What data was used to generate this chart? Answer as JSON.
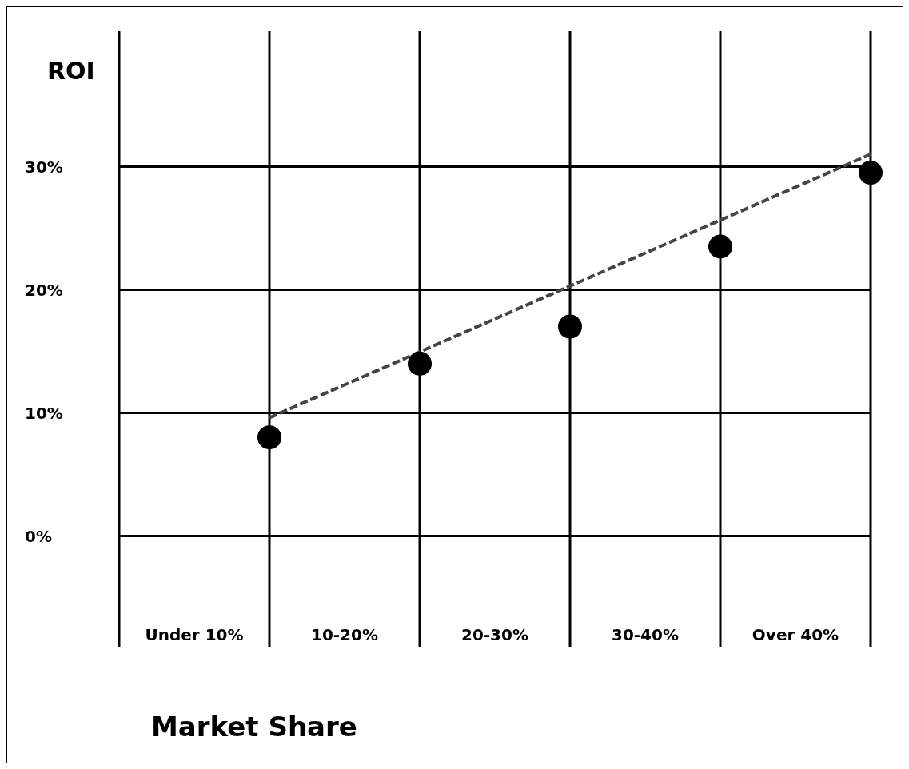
{
  "chart_data": {
    "type": "scatter",
    "xlabel": "Market Share",
    "ylabel": "ROI",
    "categories": [
      null,
      "Under 10%",
      null,
      "10-20%",
      null,
      "20-30%",
      null,
      "30-40%",
      null,
      "Over 40%",
      null
    ],
    "ylim": [
      -9,
      41
    ],
    "yticks": [
      {
        "value": 0,
        "label": "0%"
      },
      {
        "value": 10,
        "label": "10%"
      },
      {
        "value": 20,
        "label": "20%"
      },
      {
        "value": 30,
        "label": "30%"
      }
    ],
    "grid": true,
    "marker": "circle",
    "series": [
      {
        "color": "#000000",
        "values": [
          null,
          null,
          8,
          null,
          14,
          null,
          17,
          null,
          23.5,
          null,
          29.5
        ]
      },
      {
        "type": "line",
        "color": "#444444",
        "line_style": "dashed",
        "marker": "none",
        "values": [
          null,
          null,
          9.6,
          null,
          null,
          null,
          null,
          null,
          null,
          null,
          31
        ]
      }
    ]
  }
}
